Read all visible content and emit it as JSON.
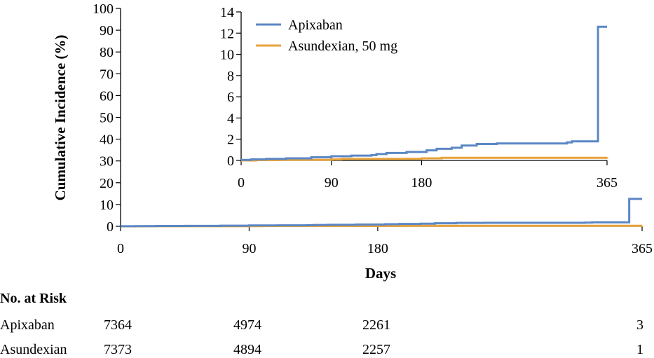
{
  "chart_data": {
    "type": "line",
    "ylabel": "Cumulative Incidence (%)",
    "xlabel": "Days",
    "colors": {
      "apixaban": "#5b87c5",
      "asundexian": "#e8a33b"
    },
    "main": {
      "xlim": [
        0,
        365
      ],
      "ylim": [
        0,
        100
      ],
      "x_ticks": [
        "0",
        "90",
        "180",
        "365"
      ],
      "x_tick_values": [
        0,
        90,
        180,
        365
      ],
      "y_ticks": [
        "0",
        "10",
        "20",
        "30",
        "40",
        "50",
        "60",
        "70",
        "80",
        "90",
        "100"
      ],
      "y_tick_values": [
        0,
        10,
        20,
        30,
        40,
        50,
        60,
        70,
        80,
        90,
        100
      ]
    },
    "inset": {
      "xlim": [
        0,
        365
      ],
      "ylim": [
        0,
        14
      ],
      "x_ticks": [
        "0",
        "90",
        "180",
        "365"
      ],
      "x_tick_values": [
        0,
        90,
        180,
        365
      ],
      "y_ticks": [
        "0",
        "2",
        "4",
        "6",
        "8",
        "10",
        "12",
        "14"
      ],
      "y_tick_values": [
        0,
        2,
        4,
        6,
        8,
        10,
        12,
        14
      ],
      "legend": [
        "Apixaban",
        "Asundexian, 50 mg"
      ]
    },
    "series": [
      {
        "name": "Apixaban",
        "step": true,
        "x": [
          0,
          10,
          25,
          45,
          70,
          90,
          110,
          130,
          135,
          145,
          165,
          185,
          195,
          210,
          220,
          235,
          255,
          325,
          330,
          350,
          356,
          365
        ],
        "y": [
          0.05,
          0.1,
          0.15,
          0.2,
          0.3,
          0.4,
          0.45,
          0.5,
          0.6,
          0.7,
          0.8,
          0.95,
          1.1,
          1.2,
          1.4,
          1.55,
          1.6,
          1.7,
          1.8,
          1.8,
          12.6,
          12.6
        ]
      },
      {
        "name": "Asundexian, 50 mg",
        "step": true,
        "x": [
          0,
          15,
          40,
          90,
          100,
          180,
          200,
          365
        ],
        "y": [
          0,
          0.03,
          0.06,
          0.1,
          0.15,
          0.2,
          0.25,
          0.3
        ]
      }
    ],
    "risk_table": {
      "title": "No. at Risk",
      "rows": [
        {
          "label": "Apixaban",
          "values": [
            "7364",
            "4974",
            "2261",
            "3"
          ]
        },
        {
          "label": "Asundexian",
          "values": [
            "7373",
            "4894",
            "2257",
            "1"
          ]
        }
      ]
    }
  }
}
